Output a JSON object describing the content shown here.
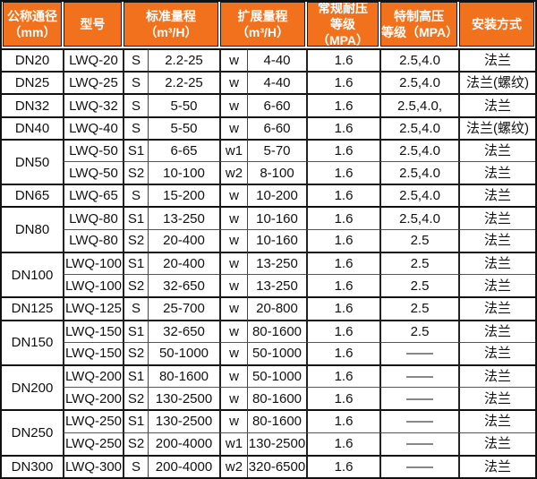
{
  "colors": {
    "header_bg": "#f2711c",
    "header_text": "#ffffff",
    "heavy_line": "#111111",
    "thin_line": "#555555",
    "body_text": "#111111",
    "cell_bg": "#ffffff"
  },
  "chart_data": {
    "type": "table",
    "title": "",
    "columns": [
      "公称通径\n（mm）",
      "型号",
      "标准量程\n（m³/H）",
      "扩展量程\n（m³/H）",
      "常规耐压\n等级（MPA）",
      "特制高压\n等级（MPA）",
      "安装方式"
    ],
    "rows": [
      {
        "dn": "DN20",
        "model": "LWQ-20",
        "s": "S",
        "std": "2.2-25",
        "w": "w",
        "ext": "4-40",
        "reg": "1.6",
        "high": "2.5,4.0",
        "install": "法兰"
      },
      {
        "dn": "DN25",
        "model": "LWQ-25",
        "s": "S",
        "std": "2.2-25",
        "w": "w",
        "ext": "4-40",
        "reg": "1.6",
        "high": "2.5,4.0",
        "install": "法兰(螺纹)"
      },
      {
        "dn": "DN32",
        "model": "LWQ-32",
        "s": "S",
        "std": "5-50",
        "w": "w",
        "ext": "6-60",
        "reg": "1.6",
        "high": "2.5,4.0,",
        "install": "法兰"
      },
      {
        "dn": "DN40",
        "model": "LWQ-40",
        "s": "S",
        "std": "5-50",
        "w": "w",
        "ext": "6-60",
        "reg": "1.6",
        "high": "2.5,4.0",
        "install": "法兰(螺纹)"
      },
      {
        "dn": "DN50",
        "model": "LWQ-50",
        "s": "S1",
        "std": "6-65",
        "w": "w1",
        "ext": "5-70",
        "reg": "1.6",
        "high": "2.5,4.0",
        "install": "法兰"
      },
      {
        "model": "LWQ-50",
        "s": "S2",
        "std": "10-100",
        "w": "w2",
        "ext": "8-100",
        "reg": "1.6",
        "high": "2.5,4.0",
        "install": "法兰"
      },
      {
        "dn": "DN65",
        "model": "LWQ-65",
        "s": "S",
        "std": "15-200",
        "w": "w",
        "ext": "10-200",
        "reg": "1.6",
        "high": "2.5,4.0",
        "install": "法兰"
      },
      {
        "dn": "DN80",
        "model": "LWQ-80",
        "s": "S1",
        "std": "13-250",
        "w": "w",
        "ext": "10-160",
        "reg": "1.6",
        "high": "2.5,4.0",
        "install": "法兰"
      },
      {
        "model": "LWQ-80",
        "s": "S2",
        "std": "20-400",
        "w": "w",
        "ext": "10-160",
        "reg": "1.6",
        "high": "2.5",
        "install": "法兰"
      },
      {
        "dn": "DN100",
        "model": "LWQ-100",
        "s": "S1",
        "std": "20-400",
        "w": "w",
        "ext": "13-250",
        "reg": "1.6",
        "high": "2.5",
        "install": "法兰"
      },
      {
        "model": "LWQ-100",
        "s": "S2",
        "std": "32-650",
        "w": "w",
        "ext": "13-250",
        "reg": "1.6",
        "high": "2.5",
        "install": "法兰"
      },
      {
        "dn": "DN125",
        "model": "LWQ-125",
        "s": "S",
        "std": "25-700",
        "w": "w",
        "ext": "20-800",
        "reg": "1.6",
        "high": "2.5",
        "install": "法兰"
      },
      {
        "dn": "DN150",
        "model": "LWQ-150",
        "s": "S1",
        "std": "32-650",
        "w": "w",
        "ext": "80-1600",
        "reg": "1.6",
        "high": "2.5",
        "install": "法兰"
      },
      {
        "model": "LWQ-150",
        "s": "S2",
        "std": "50-1000",
        "w": "w",
        "ext": "50-1000",
        "reg": "1.6",
        "high": "——",
        "install": "法兰"
      },
      {
        "dn": "DN200",
        "model": "LWQ-200",
        "s": "S1",
        "std": "80-1600",
        "w": "w",
        "ext": "50-1000",
        "reg": "1.6",
        "high": "——",
        "install": "法兰"
      },
      {
        "model": "LWQ-200",
        "s": "S2",
        "std": "130-2500",
        "w": "w",
        "ext": "80-1600",
        "reg": "1.6",
        "high": "——",
        "install": "法兰"
      },
      {
        "dn": "DN250",
        "model": "LWQ-250",
        "s": "S1",
        "std": "130-2500",
        "w": "w",
        "ext": "80-1600",
        "reg": "1.6",
        "high": "——",
        "install": "法兰"
      },
      {
        "model": "LWQ-250",
        "s": "S2",
        "std": "200-4000",
        "w": "w1",
        "ext": "130-2500",
        "reg": "1.6",
        "high": "——",
        "install": "法兰"
      },
      {
        "dn": "DN300",
        "model": "LWQ-300",
        "s": "S",
        "std": "200-4000",
        "w": "w2",
        "ext": "320-6500",
        "reg": "1.6",
        "high": "——",
        "install": "法兰"
      }
    ]
  }
}
